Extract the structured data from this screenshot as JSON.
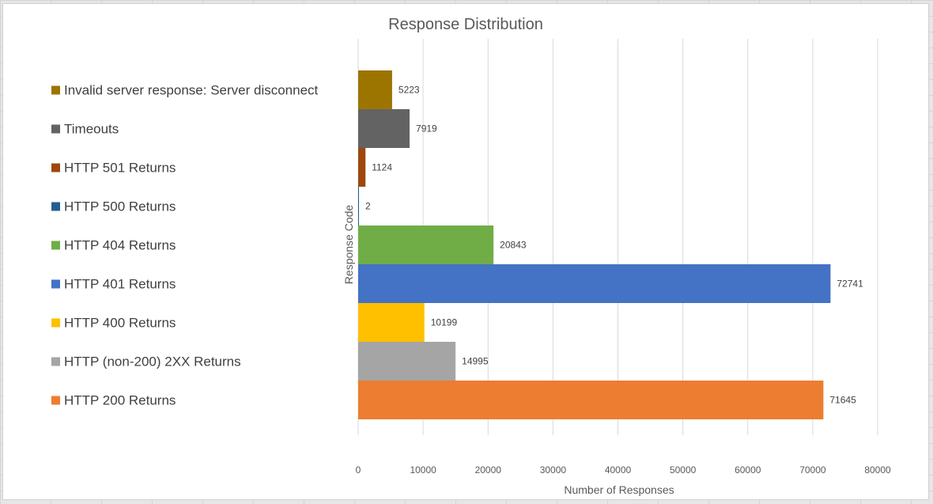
{
  "chart_data": {
    "type": "bar",
    "orientation": "horizontal",
    "title": "Response Distribution",
    "xlabel": "Number of Responses",
    "ylabel": "Response Code",
    "xlim": [
      0,
      80000
    ],
    "x_ticks": [
      0,
      10000,
      20000,
      30000,
      40000,
      50000,
      60000,
      70000,
      80000
    ],
    "grid": true,
    "legend_position": "left",
    "series": [
      {
        "name": "Invalid server response: Server disconnect",
        "value": 5223,
        "color": "#9c7400"
      },
      {
        "name": "Timeouts",
        "value": 7919,
        "color": "#636363"
      },
      {
        "name": "HTTP 501 Returns",
        "value": 1124,
        "color": "#9e480e"
      },
      {
        "name": "HTTP 500 Returns",
        "value": 2,
        "color": "#255e91"
      },
      {
        "name": "HTTP 404 Returns",
        "value": 20843,
        "color": "#70ad47"
      },
      {
        "name": "HTTP 401 Returns",
        "value": 72741,
        "color": "#4472c4"
      },
      {
        "name": "HTTP 400 Returns",
        "value": 10199,
        "color": "#ffc000"
      },
      {
        "name": "HTTP (non-200) 2XX Returns",
        "value": 14995,
        "color": "#a5a5a5"
      },
      {
        "name": "HTTP 200 Returns",
        "value": 71645,
        "color": "#ed7d31"
      }
    ]
  }
}
